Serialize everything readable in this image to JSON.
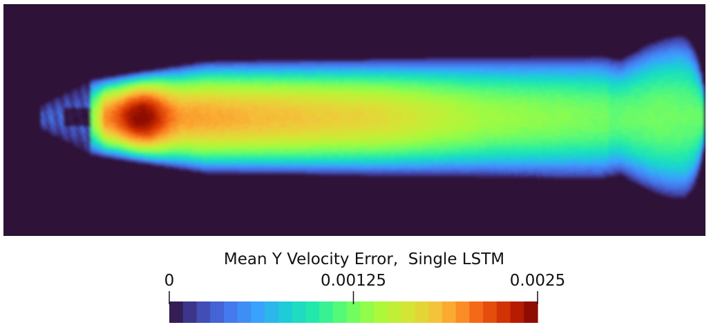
{
  "chart_data": {
    "type": "heatmap",
    "title": "",
    "colorbar": {
      "title": "Mean Y Velocity Error,  Single LSTM",
      "range": [
        0,
        0.0025
      ],
      "tick_labels": [
        "0",
        "0.00125",
        "0.0025"
      ],
      "tick_values": [
        0,
        0.00125,
        0.0025
      ],
      "num_bands": 27,
      "colormap": "turbo"
    },
    "field_features": [
      {
        "name": "peak-core",
        "approx_value": 0.0025
      },
      {
        "name": "wake-mid",
        "approx_value": 0.0018
      },
      {
        "name": "wake-far",
        "approx_value": 0.0012
      },
      {
        "name": "far-bulb-center",
        "approx_value": 0.0011
      },
      {
        "name": "background",
        "approx_value": 0
      }
    ],
    "colors": {
      "background": "#2f1238"
    }
  }
}
